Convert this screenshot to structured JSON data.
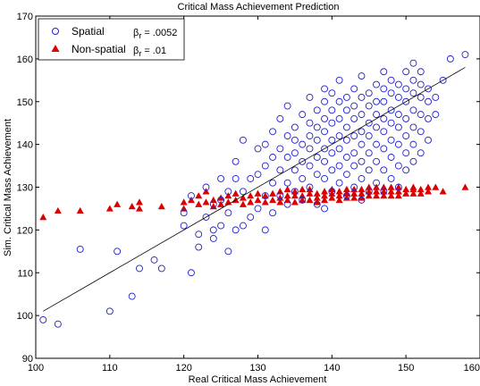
{
  "chart_data": {
    "type": "scatter",
    "title": "Critical Mass Achievement Prediction",
    "xlabel": "Real Critical Mass Achievement",
    "ylabel": "Sim. Critical Mass Achievement",
    "xlim": [
      100,
      160
    ],
    "ylim": [
      90,
      170
    ],
    "xticks": [
      100,
      110,
      120,
      130,
      140,
      150,
      160
    ],
    "yticks": [
      90,
      100,
      110,
      120,
      130,
      140,
      150,
      160,
      170
    ],
    "grid": false,
    "legend_position": "top-left",
    "colors": {
      "spatial": "#2222cc",
      "nonspatial": "#dd0000",
      "fit": "#000000"
    },
    "fit_line": {
      "x": [
        101,
        158
      ],
      "y": [
        101,
        158
      ]
    },
    "series": [
      {
        "name": "Spatial",
        "beta_symbol": "β",
        "beta_sub": "r",
        "beta_value": "= .0052",
        "marker": "circle",
        "points": [
          [
            101,
            99
          ],
          [
            103,
            98
          ],
          [
            106,
            115.5
          ],
          [
            110,
            101
          ],
          [
            111,
            115
          ],
          [
            113,
            104.5
          ],
          [
            114,
            111
          ],
          [
            116,
            113
          ],
          [
            117,
            111
          ],
          [
            120,
            121
          ],
          [
            120,
            124
          ],
          [
            121,
            110
          ],
          [
            121,
            128
          ],
          [
            122,
            116
          ],
          [
            122,
            119
          ],
          [
            123,
            123
          ],
          [
            123,
            130
          ],
          [
            124,
            118
          ],
          [
            124,
            120
          ],
          [
            124,
            126
          ],
          [
            125,
            121
          ],
          [
            125,
            127
          ],
          [
            125,
            132
          ],
          [
            126,
            115
          ],
          [
            126,
            124
          ],
          [
            126,
            129
          ],
          [
            127,
            120
          ],
          [
            127,
            132
          ],
          [
            127,
            136
          ],
          [
            128,
            121
          ],
          [
            128,
            141
          ],
          [
            128,
            129
          ],
          [
            129,
            132
          ],
          [
            129,
            123
          ],
          [
            130,
            125
          ],
          [
            130,
            133
          ],
          [
            130,
            139
          ],
          [
            131,
            120
          ],
          [
            131,
            128
          ],
          [
            131,
            135
          ],
          [
            131,
            140
          ],
          [
            132,
            124
          ],
          [
            132,
            131
          ],
          [
            132,
            137
          ],
          [
            132,
            143
          ],
          [
            133,
            128
          ],
          [
            133,
            134
          ],
          [
            133,
            139
          ],
          [
            133,
            146
          ],
          [
            134,
            126
          ],
          [
            134,
            131
          ],
          [
            134,
            137
          ],
          [
            134,
            142
          ],
          [
            134,
            149
          ],
          [
            135,
            129
          ],
          [
            135,
            134
          ],
          [
            135,
            138
          ],
          [
            135,
            141
          ],
          [
            135,
            144
          ],
          [
            136,
            127
          ],
          [
            136,
            132
          ],
          [
            136,
            136
          ],
          [
            136,
            140
          ],
          [
            136,
            147
          ],
          [
            137,
            130
          ],
          [
            137,
            135
          ],
          [
            137,
            139
          ],
          [
            137,
            142
          ],
          [
            137,
            145
          ],
          [
            137,
            151
          ],
          [
            138,
            126
          ],
          [
            138,
            133
          ],
          [
            138,
            137
          ],
          [
            138,
            141
          ],
          [
            138,
            144
          ],
          [
            138,
            148
          ],
          [
            139,
            125
          ],
          [
            139,
            132
          ],
          [
            139,
            136
          ],
          [
            139,
            139
          ],
          [
            139,
            143
          ],
          [
            139,
            146
          ],
          [
            139,
            150
          ],
          [
            139,
            153
          ],
          [
            140,
            129
          ],
          [
            140,
            134
          ],
          [
            140,
            138
          ],
          [
            140,
            141
          ],
          [
            140,
            145
          ],
          [
            140,
            148
          ],
          [
            140,
            152
          ],
          [
            141,
            131
          ],
          [
            141,
            135
          ],
          [
            141,
            139
          ],
          [
            141,
            142
          ],
          [
            141,
            146
          ],
          [
            141,
            150
          ],
          [
            141,
            155
          ],
          [
            142,
            128
          ],
          [
            142,
            133
          ],
          [
            142,
            137
          ],
          [
            142,
            141
          ],
          [
            142,
            144
          ],
          [
            142,
            148
          ],
          [
            142,
            151
          ],
          [
            143,
            130
          ],
          [
            143,
            135
          ],
          [
            143,
            138
          ],
          [
            143,
            142
          ],
          [
            143,
            146
          ],
          [
            143,
            149
          ],
          [
            143,
            153
          ],
          [
            144,
            127
          ],
          [
            144,
            132
          ],
          [
            144,
            136
          ],
          [
            144,
            140
          ],
          [
            144,
            143
          ],
          [
            144,
            147
          ],
          [
            144,
            151
          ],
          [
            144,
            156
          ],
          [
            145,
            129
          ],
          [
            145,
            134
          ],
          [
            145,
            138
          ],
          [
            145,
            142
          ],
          [
            145,
            145
          ],
          [
            145,
            149
          ],
          [
            145,
            152
          ],
          [
            146,
            131
          ],
          [
            146,
            136
          ],
          [
            146,
            140
          ],
          [
            146,
            144
          ],
          [
            146,
            147
          ],
          [
            146,
            150
          ],
          [
            146,
            154
          ],
          [
            147,
            129
          ],
          [
            147,
            134
          ],
          [
            147,
            139
          ],
          [
            147,
            143
          ],
          [
            147,
            146
          ],
          [
            147,
            150
          ],
          [
            147,
            153
          ],
          [
            147,
            157
          ],
          [
            148,
            132
          ],
          [
            148,
            137
          ],
          [
            148,
            141
          ],
          [
            148,
            145
          ],
          [
            148,
            148
          ],
          [
            148,
            152
          ],
          [
            148,
            155
          ],
          [
            149,
            130
          ],
          [
            149,
            135
          ],
          [
            149,
            140
          ],
          [
            149,
            144
          ],
          [
            149,
            147
          ],
          [
            149,
            151
          ],
          [
            149,
            154
          ],
          [
            150,
            134
          ],
          [
            150,
            138
          ],
          [
            150,
            142
          ],
          [
            150,
            146
          ],
          [
            150,
            150
          ],
          [
            150,
            153
          ],
          [
            150,
            157
          ],
          [
            151,
            136
          ],
          [
            151,
            140
          ],
          [
            151,
            144
          ],
          [
            151,
            148
          ],
          [
            151,
            152
          ],
          [
            151,
            155
          ],
          [
            151,
            159
          ],
          [
            152,
            138
          ],
          [
            152,
            143
          ],
          [
            152,
            147
          ],
          [
            152,
            151
          ],
          [
            152,
            154
          ],
          [
            152,
            157
          ],
          [
            153,
            141
          ],
          [
            153,
            146
          ],
          [
            153,
            150
          ],
          [
            153,
            153
          ],
          [
            154,
            147
          ],
          [
            154,
            151
          ],
          [
            155,
            155
          ],
          [
            156,
            160
          ],
          [
            158,
            161
          ]
        ]
      },
      {
        "name": "Non-spatial",
        "beta_symbol": "β",
        "beta_sub": "r",
        "beta_value": "= .01",
        "marker": "triangle",
        "points": [
          [
            101,
            123
          ],
          [
            103,
            124.5
          ],
          [
            106,
            124.5
          ],
          [
            110,
            125
          ],
          [
            111,
            126
          ],
          [
            113,
            125.5
          ],
          [
            114,
            126.5
          ],
          [
            114,
            125
          ],
          [
            117,
            125.5
          ],
          [
            120,
            126.5
          ],
          [
            120,
            125
          ],
          [
            121,
            127
          ],
          [
            122,
            126
          ],
          [
            122,
            128
          ],
          [
            123,
            126.5
          ],
          [
            123,
            129
          ],
          [
            124,
            127
          ],
          [
            124,
            125.5
          ],
          [
            125,
            127.5
          ],
          [
            125,
            126
          ],
          [
            126,
            128
          ],
          [
            126,
            126.5
          ],
          [
            127,
            127
          ],
          [
            127,
            128.5
          ],
          [
            128,
            126
          ],
          [
            128,
            127.5
          ],
          [
            129,
            128
          ],
          [
            129,
            126.5
          ],
          [
            130,
            127
          ],
          [
            130,
            128.5
          ],
          [
            131,
            126.5
          ],
          [
            131,
            128
          ],
          [
            132,
            127
          ],
          [
            132,
            128.5
          ],
          [
            133,
            126.5
          ],
          [
            133,
            127.5
          ],
          [
            133,
            129
          ],
          [
            134,
            127
          ],
          [
            134,
            128
          ],
          [
            134,
            129.5
          ],
          [
            135,
            126.5
          ],
          [
            135,
            128
          ],
          [
            135,
            129
          ],
          [
            136,
            127
          ],
          [
            136,
            128
          ],
          [
            136,
            129.5
          ],
          [
            137,
            127
          ],
          [
            137,
            128.5
          ],
          [
            137,
            129.5
          ],
          [
            138,
            126.5
          ],
          [
            138,
            127.5
          ],
          [
            138,
            128.5
          ],
          [
            139,
            127
          ],
          [
            139,
            128
          ],
          [
            139,
            129
          ],
          [
            140,
            127.5
          ],
          [
            140,
            128.5
          ],
          [
            140,
            129.5
          ],
          [
            141,
            127
          ],
          [
            141,
            128
          ],
          [
            141,
            129
          ],
          [
            142,
            127.5
          ],
          [
            142,
            128.5
          ],
          [
            142,
            129.5
          ],
          [
            143,
            127.5
          ],
          [
            143,
            128.5
          ],
          [
            143,
            129.5
          ],
          [
            144,
            127.5
          ],
          [
            144,
            128.5
          ],
          [
            144,
            129.5
          ],
          [
            145,
            128
          ],
          [
            145,
            129
          ],
          [
            145,
            130
          ],
          [
            146,
            128
          ],
          [
            146,
            129
          ],
          [
            146,
            130
          ],
          [
            147,
            128
          ],
          [
            147,
            129
          ],
          [
            147,
            130
          ],
          [
            148,
            128
          ],
          [
            148,
            129
          ],
          [
            148,
            130
          ],
          [
            149,
            128
          ],
          [
            149,
            129
          ],
          [
            149,
            130
          ],
          [
            150,
            128.5
          ],
          [
            150,
            129.5
          ],
          [
            151,
            128.5
          ],
          [
            151,
            129.5
          ],
          [
            151,
            130
          ],
          [
            152,
            128.5
          ],
          [
            152,
            129.5
          ],
          [
            153,
            129
          ],
          [
            153,
            130
          ],
          [
            154,
            130
          ],
          [
            155,
            129
          ],
          [
            158,
            130
          ]
        ]
      }
    ]
  }
}
